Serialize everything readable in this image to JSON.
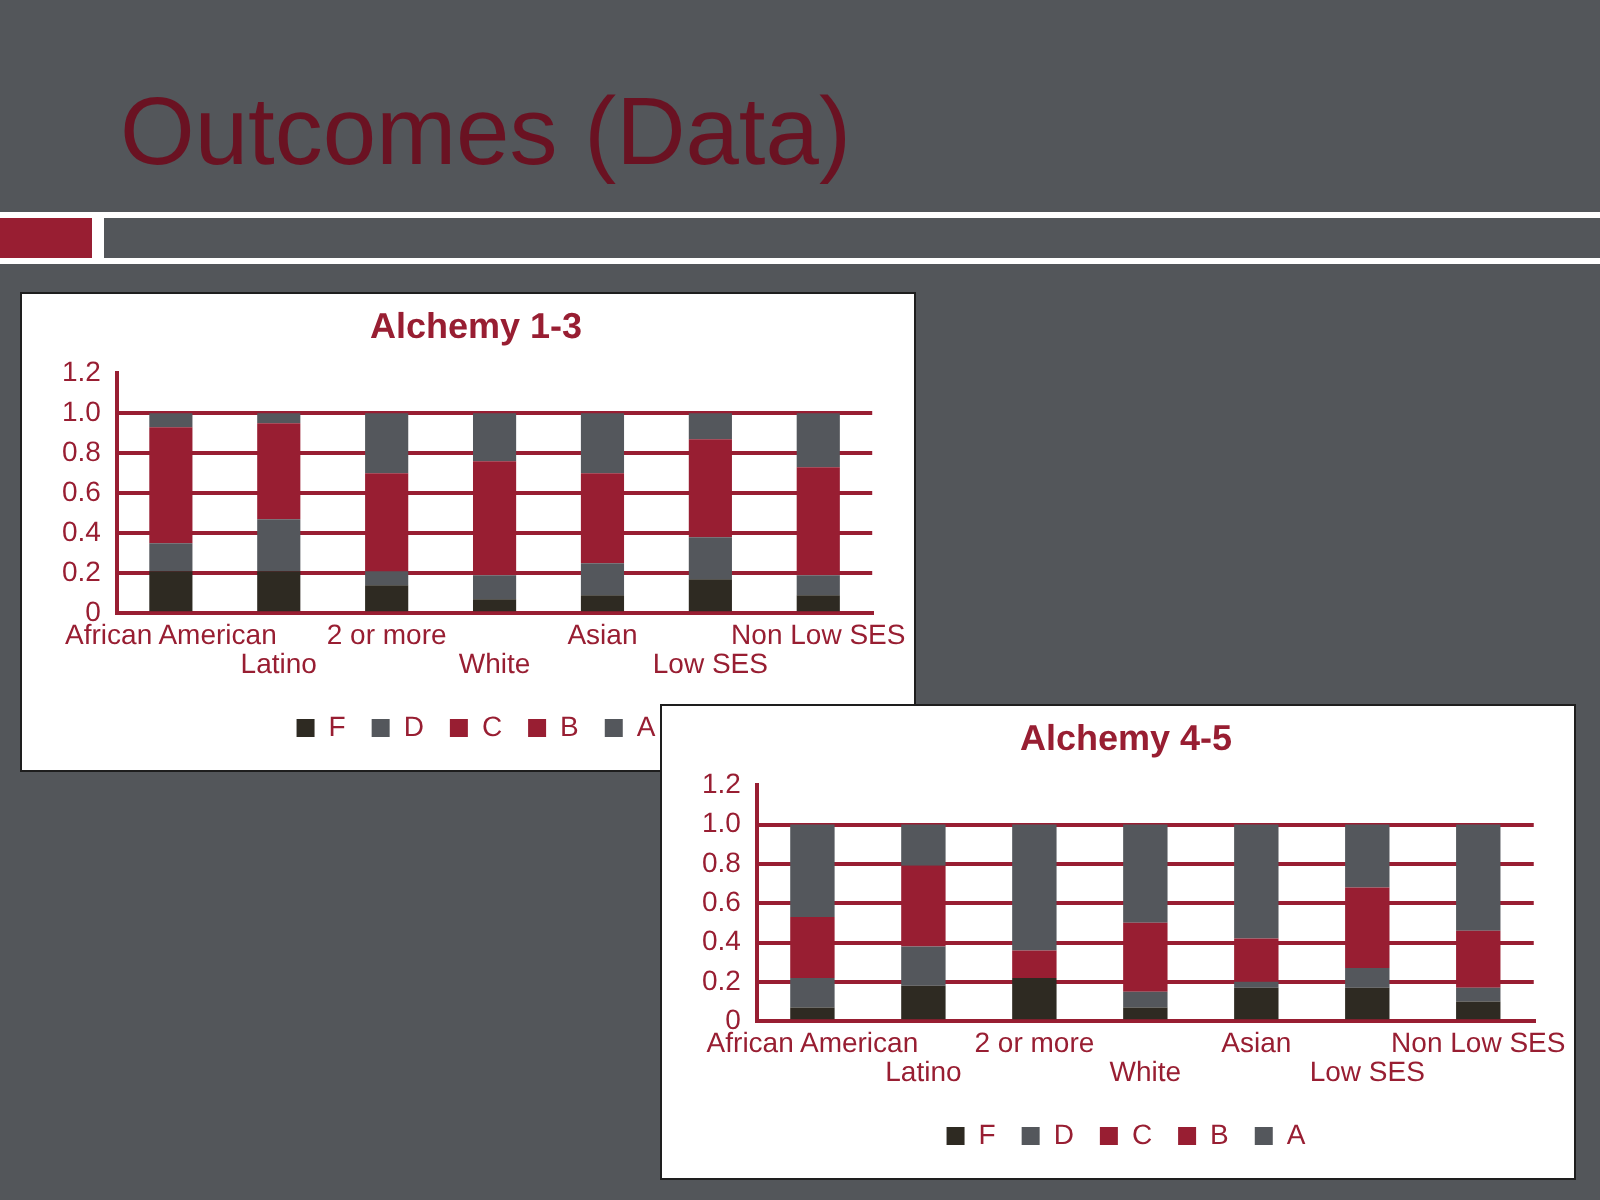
{
  "chart_data": [
    {
      "type": "other",
      "title": "Outcomes (Data)"
    },
    {
      "type": "bar",
      "title": "Alchemy 1-3",
      "categories": [
        "African American",
        "Latino",
        "2 or more",
        "White",
        "Asian",
        "Low SES",
        "Non Low SES"
      ],
      "stacked": true,
      "series": [
        {
          "name": "F",
          "color": "#2e2a22",
          "values": [
            0.21,
            0.21,
            0.14,
            0.07,
            0.09,
            0.17,
            0.09
          ]
        },
        {
          "name": "D",
          "color": "#54575c",
          "values": [
            0.14,
            0.26,
            0.07,
            0.12,
            0.16,
            0.21,
            0.1
          ]
        },
        {
          "name": "C",
          "color": "#981e32",
          "values": [
            0.58,
            0.48,
            0.49,
            0.57,
            0.45,
            0.49,
            0.54
          ]
        },
        {
          "name": "B",
          "color": "#981e32",
          "values": [
            null,
            null,
            null,
            null,
            null,
            null,
            null
          ]
        },
        {
          "name": "A",
          "color": "#54575c",
          "values": [
            0.07,
            0.05,
            0.3,
            0.24,
            0.3,
            0.13,
            0.27
          ]
        }
      ],
      "ylim": [
        0,
        1.2
      ],
      "yticks": [
        0,
        0.2,
        0.4,
        0.6,
        0.8,
        {
          "value": 1,
          "label": "1.0"
        },
        1.2
      ],
      "grid": "y",
      "legend": "bottom"
    },
    {
      "type": "bar",
      "title": "Alchemy 4-5",
      "categories": [
        "African American",
        "Latino",
        "2 or more",
        "White",
        "Asian",
        "Low SES",
        "Non Low SES"
      ],
      "stacked": true,
      "series": [
        {
          "name": "F",
          "color": "#2e2a22",
          "values": [
            0.07,
            0.18,
            0.22,
            0.07,
            0.17,
            0.17,
            0.1
          ]
        },
        {
          "name": "D",
          "color": "#54575c",
          "values": [
            0.15,
            0.2,
            0,
            0.08,
            0.03,
            0.1,
            0.07
          ]
        },
        {
          "name": "C",
          "color": "#981e32",
          "values": [
            0.31,
            0.41,
            0.14,
            0.35,
            0.22,
            0.41,
            0.29
          ]
        },
        {
          "name": "B",
          "color": "#981e32",
          "values": [
            null,
            null,
            null,
            null,
            null,
            null,
            null
          ]
        },
        {
          "name": "A",
          "color": "#54575c",
          "values": [
            0.47,
            0.21,
            0.64,
            0.5,
            0.58,
            0.32,
            0.54
          ]
        }
      ],
      "ylim": [
        0,
        1.2
      ],
      "yticks": [
        0,
        0.2,
        0.4,
        0.6,
        0.8,
        {
          "value": 1,
          "label": "1.0"
        },
        1.2
      ],
      "grid": "y",
      "legend": "bottom"
    }
  ]
}
